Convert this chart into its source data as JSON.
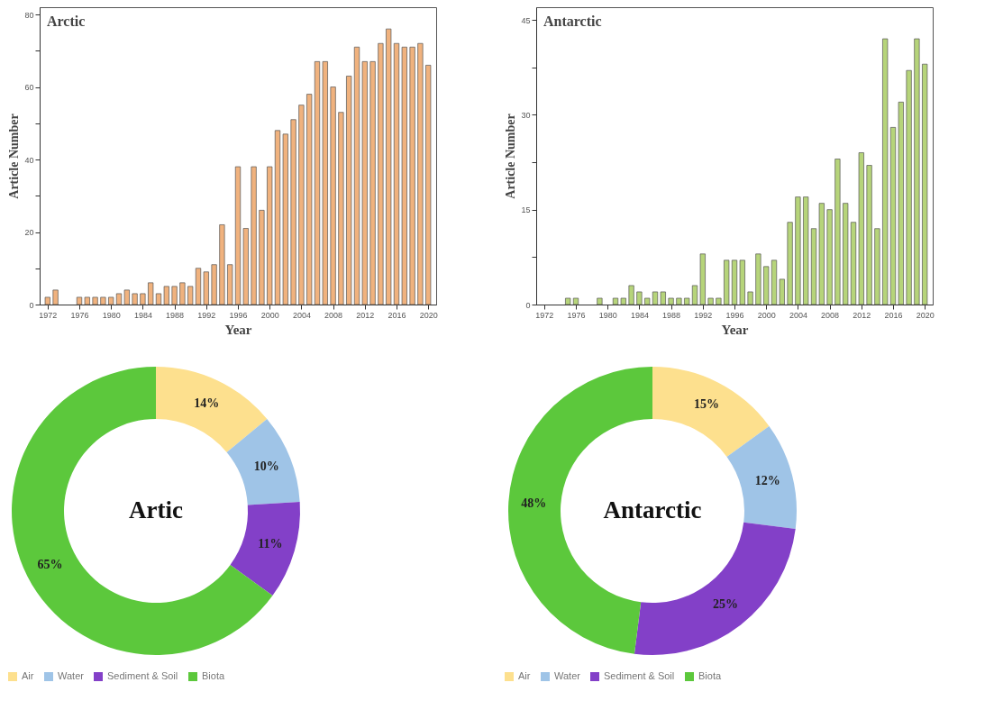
{
  "chart_data": [
    {
      "type": "bar",
      "title": "Arctic",
      "xlabel": "Year",
      "ylabel": "Article Number",
      "color": "#f0b27e",
      "x": [
        1972,
        1973,
        1974,
        1975,
        1976,
        1977,
        1978,
        1979,
        1980,
        1981,
        1982,
        1983,
        1984,
        1985,
        1986,
        1987,
        1988,
        1989,
        1990,
        1991,
        1992,
        1993,
        1994,
        1995,
        1996,
        1997,
        1998,
        1999,
        2000,
        2001,
        2002,
        2003,
        2004,
        2005,
        2006,
        2007,
        2008,
        2009,
        2010,
        2011,
        2012,
        2013,
        2014,
        2015,
        2016,
        2017,
        2018,
        2019,
        2020
      ],
      "values": [
        2,
        4,
        0,
        0,
        2,
        2,
        2,
        2,
        2,
        3,
        4,
        3,
        3,
        6,
        3,
        5,
        5,
        6,
        5,
        10,
        9,
        11,
        22,
        11,
        38,
        21,
        38,
        26,
        38,
        48,
        47,
        51,
        55,
        58,
        67,
        67,
        60,
        53,
        63,
        71,
        67,
        67,
        72,
        76,
        72,
        71,
        71,
        72,
        66
      ],
      "xlim": [
        1971,
        2021
      ],
      "xticks": [
        1972,
        1976,
        1980,
        1984,
        1988,
        1992,
        1996,
        2000,
        2004,
        2008,
        2012,
        2016,
        2020
      ],
      "ylim": [
        0,
        82
      ],
      "yticks": [
        0,
        {
          "value": 10,
          "label": null
        },
        20,
        {
          "value": 30,
          "label": null
        },
        40,
        {
          "value": 50,
          "label": null
        },
        60,
        {
          "value": 70,
          "label": null
        },
        80
      ]
    },
    {
      "type": "bar",
      "title": "Antarctic",
      "xlabel": "Year",
      "ylabel": "Article Number",
      "color": "#b6d47a",
      "x": [
        1972,
        1973,
        1974,
        1975,
        1976,
        1977,
        1978,
        1979,
        1980,
        1981,
        1982,
        1983,
        1984,
        1985,
        1986,
        1987,
        1988,
        1989,
        1990,
        1991,
        1992,
        1993,
        1994,
        1995,
        1996,
        1997,
        1998,
        1999,
        2000,
        2001,
        2002,
        2003,
        2004,
        2005,
        2006,
        2007,
        2008,
        2009,
        2010,
        2011,
        2012,
        2013,
        2014,
        2015,
        2016,
        2017,
        2018,
        2019,
        2020
      ],
      "values": [
        0,
        0,
        0,
        1,
        1,
        0,
        0,
        1,
        0,
        1,
        1,
        3,
        2,
        1,
        2,
        2,
        1,
        1,
        1,
        3,
        8,
        1,
        1,
        7,
        7,
        7,
        2,
        8,
        6,
        7,
        4,
        13,
        17,
        17,
        12,
        16,
        15,
        23,
        16,
        13,
        24,
        22,
        12,
        42,
        28,
        32,
        37,
        42,
        38
      ],
      "xlim": [
        1971,
        2021
      ],
      "xticks": [
        1972,
        1976,
        1980,
        1984,
        1988,
        1992,
        1996,
        2000,
        2004,
        2008,
        2012,
        2016,
        2020
      ],
      "ylim": [
        0,
        47
      ],
      "yticks": [
        0,
        {
          "value": 7.5,
          "label": null
        },
        15,
        {
          "value": 22.5,
          "label": null
        },
        30,
        {
          "value": 37.5,
          "label": null
        },
        45
      ]
    },
    {
      "type": "donut",
      "title": "Artic",
      "legend": "bottom",
      "categories": [
        "Air",
        "Water",
        "Sediment & Soil",
        "Biota"
      ],
      "values": [
        14,
        10,
        11,
        65
      ],
      "value_labels": [
        "14%",
        "10%",
        "11%",
        "65%"
      ],
      "colors": [
        "#fde08e",
        "#9fc4e7",
        "#8340c8",
        "#5cc83c"
      ]
    },
    {
      "type": "donut",
      "title": "Antarctic",
      "legend": "bottom",
      "categories": [
        "Air",
        "Water",
        "Sediment & Soil",
        "Biota"
      ],
      "values": [
        15,
        12,
        25,
        48
      ],
      "value_labels": [
        "15%",
        "12%",
        "25%",
        "48%"
      ],
      "colors": [
        "#fde08e",
        "#9fc4e7",
        "#8340c8",
        "#5cc83c"
      ]
    }
  ]
}
